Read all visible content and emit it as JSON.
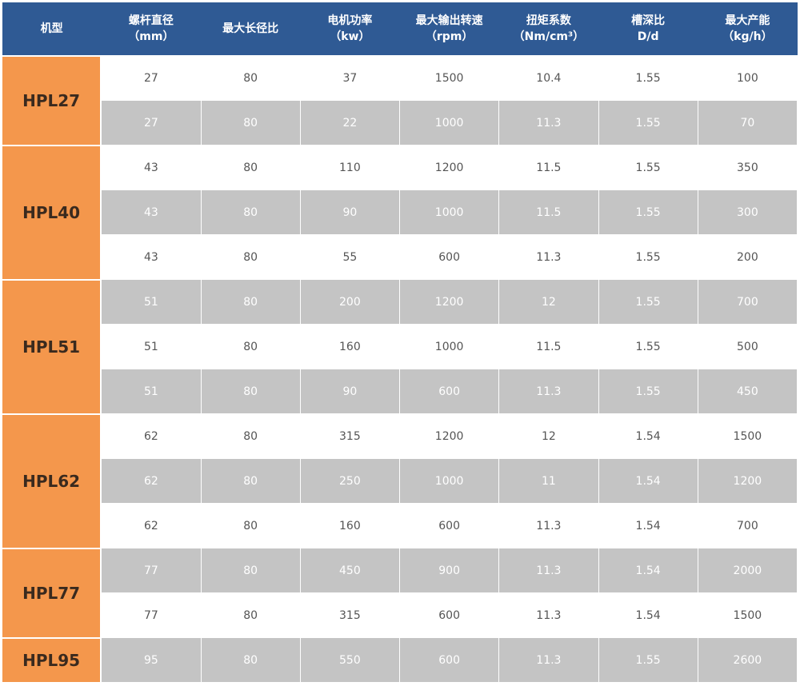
{
  "headers": [
    {
      "line1": "机型",
      "line2": ""
    },
    {
      "line1": "螺杆直径",
      "line2": "（mm）"
    },
    {
      "line1": "最大长径比",
      "line2": ""
    },
    {
      "line1": "电机功率",
      "line2": "（kw）"
    },
    {
      "line1": "最大输出转速",
      "line2": "（rpm）"
    },
    {
      "line1": "扭矩系数",
      "line2": "（Nm/cm³）"
    },
    {
      "line1": "槽深比",
      "line2": "D/d"
    },
    {
      "line1": "最大产能",
      "line2": "（kg/h）"
    }
  ],
  "groups": [
    {
      "model": "HPL27",
      "rows": [
        {
          "shade": "white",
          "cells": [
            "27",
            "80",
            "37",
            "1500",
            "10.4",
            "1.55",
            "100"
          ]
        },
        {
          "shade": "gray",
          "cells": [
            "27",
            "80",
            "22",
            "1000",
            "11.3",
            "1.55",
            "70"
          ]
        }
      ]
    },
    {
      "model": "HPL40",
      "rows": [
        {
          "shade": "white",
          "cells": [
            "43",
            "80",
            "110",
            "1200",
            "11.5",
            "1.55",
            "350"
          ]
        },
        {
          "shade": "gray",
          "cells": [
            "43",
            "80",
            "90",
            "1000",
            "11.5",
            "1.55",
            "300"
          ]
        },
        {
          "shade": "white",
          "cells": [
            "43",
            "80",
            "55",
            "600",
            "11.3",
            "1.55",
            "200"
          ]
        }
      ]
    },
    {
      "model": "HPL51",
      "rows": [
        {
          "shade": "gray",
          "cells": [
            "51",
            "80",
            "200",
            "1200",
            "12",
            "1.55",
            "700"
          ]
        },
        {
          "shade": "white",
          "cells": [
            "51",
            "80",
            "160",
            "1000",
            "11.5",
            "1.55",
            "500"
          ]
        },
        {
          "shade": "gray",
          "cells": [
            "51",
            "80",
            "90",
            "600",
            "11.3",
            "1.55",
            "450"
          ]
        }
      ]
    },
    {
      "model": "HPL62",
      "rows": [
        {
          "shade": "white",
          "cells": [
            "62",
            "80",
            "315",
            "1200",
            "12",
            "1.54",
            "1500"
          ]
        },
        {
          "shade": "gray",
          "cells": [
            "62",
            "80",
            "250",
            "1000",
            "11",
            "1.54",
            "1200"
          ]
        },
        {
          "shade": "white",
          "cells": [
            "62",
            "80",
            "160",
            "600",
            "11.3",
            "1.54",
            "700"
          ]
        }
      ]
    },
    {
      "model": "HPL77",
      "rows": [
        {
          "shade": "gray",
          "cells": [
            "77",
            "80",
            "450",
            "900",
            "11.3",
            "1.54",
            "2000"
          ]
        },
        {
          "shade": "white",
          "cells": [
            "77",
            "80",
            "315",
            "600",
            "11.3",
            "1.54",
            "1500"
          ]
        }
      ]
    },
    {
      "model": "HPL95",
      "rows": [
        {
          "shade": "gray",
          "cells": [
            "95",
            "80",
            "550",
            "600",
            "11.3",
            "1.55",
            "2600"
          ]
        }
      ]
    }
  ],
  "colors": {
    "header_bg": "#2f5a94",
    "model_bg": "#f4974c",
    "row_gray": "#c4c4c4",
    "row_white": "#ffffff"
  }
}
